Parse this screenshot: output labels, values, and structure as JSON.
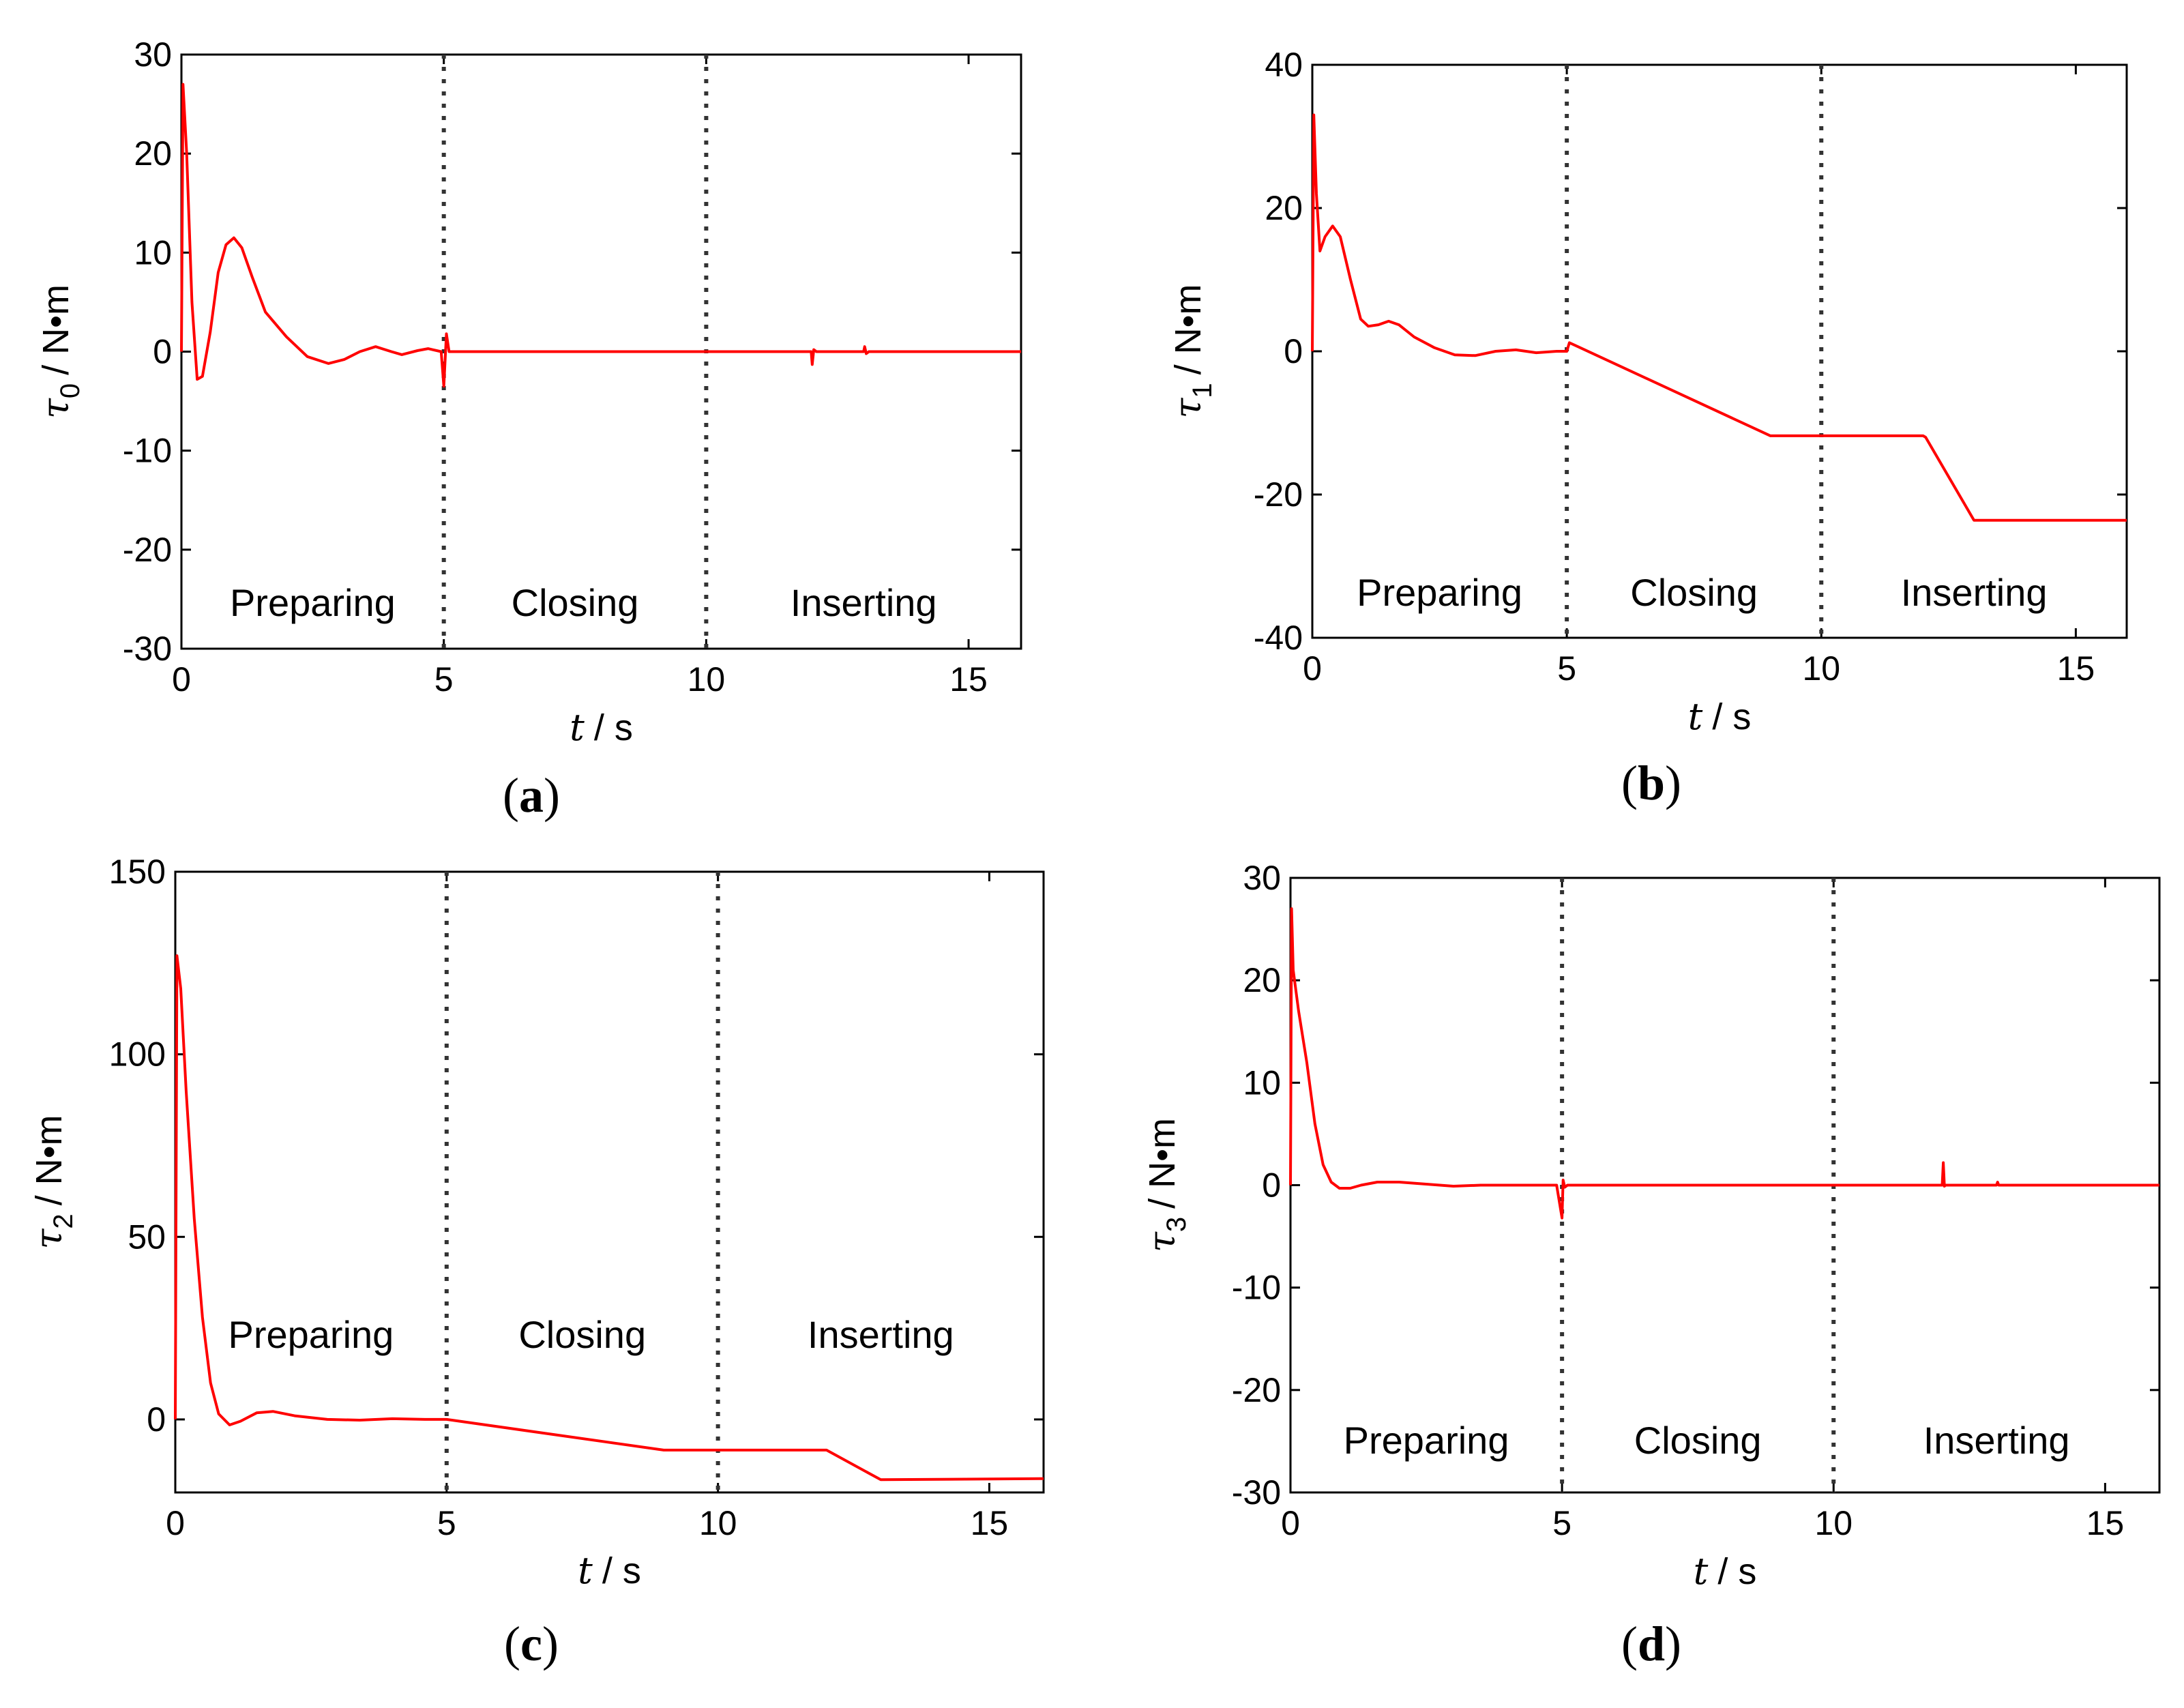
{
  "chart_data": [
    {
      "type": "line",
      "panel": "a",
      "caption_letter": "a",
      "ylabel": {
        "symbol": "τ",
        "subscript": "0",
        "unit": "/ N•m"
      },
      "xlabel": {
        "symbol": "t",
        "unit": "/ s"
      },
      "xlim": [
        0,
        16
      ],
      "ylim": [
        -30,
        30
      ],
      "xticks": [
        0,
        5,
        10,
        15
      ],
      "yticks": [
        -30,
        -20,
        -10,
        0,
        10,
        20,
        30
      ],
      "phase_boundaries": [
        5,
        10
      ],
      "phases": [
        "Preparing",
        "Closing",
        "Inserting"
      ],
      "series": [
        {
          "name": "tau0",
          "x": [
            0,
            0.03,
            0.1,
            0.2,
            0.3,
            0.4,
            0.55,
            0.7,
            0.85,
            1.0,
            1.15,
            1.35,
            1.6,
            2.0,
            2.4,
            2.8,
            3.1,
            3.4,
            3.7,
            4.0,
            4.2,
            4.5,
            4.7,
            4.95,
            5.0,
            5.05,
            5.1,
            6,
            8,
            10,
            12.0,
            12.02,
            12.05,
            12.1,
            13.0,
            13.02,
            13.05,
            13.1,
            16
          ],
          "y": [
            0,
            27,
            20,
            5,
            -2.8,
            -2.5,
            2,
            8,
            10.8,
            11.5,
            10.5,
            7.5,
            4,
            1.5,
            -0.5,
            -1.2,
            -0.8,
            0,
            0.5,
            0,
            -0.3,
            0.1,
            0.3,
            0,
            -3.5,
            1.8,
            0,
            0,
            0,
            0,
            0,
            -1.3,
            0.2,
            0,
            0,
            0.5,
            -0.2,
            0,
            0
          ]
        }
      ]
    },
    {
      "type": "line",
      "panel": "b",
      "caption_letter": "b",
      "ylabel": {
        "symbol": "τ",
        "subscript": "1",
        "unit": "/ N•m"
      },
      "xlabel": {
        "symbol": "t",
        "unit": "/ s"
      },
      "xlim": [
        0,
        16
      ],
      "ylim": [
        -40,
        40
      ],
      "xticks": [
        0,
        5,
        10,
        15
      ],
      "yticks": [
        -40,
        -20,
        0,
        20,
        40
      ],
      "phase_boundaries": [
        5,
        10
      ],
      "phases": [
        "Preparing",
        "Closing",
        "Inserting"
      ],
      "series": [
        {
          "name": "tau1",
          "x": [
            0,
            0.03,
            0.08,
            0.15,
            0.25,
            0.4,
            0.55,
            0.75,
            0.95,
            1.1,
            1.3,
            1.5,
            1.7,
            2.0,
            2.4,
            2.8,
            3.2,
            3.6,
            4.0,
            4.4,
            4.8,
            5.0,
            5.05,
            9.0,
            12.0,
            12.05,
            13.0,
            16
          ],
          "y": [
            0,
            33,
            22,
            14,
            16,
            17.5,
            16,
            10,
            4.5,
            3.5,
            3.7,
            4.2,
            3.7,
            2,
            0.5,
            -0.5,
            -0.6,
            0,
            0.2,
            -0.2,
            0,
            0,
            1.2,
            -11.8,
            -11.8,
            -12,
            -23.6,
            -23.6
          ]
        }
      ]
    },
    {
      "type": "line",
      "panel": "c",
      "caption_letter": "c",
      "ylabel": {
        "symbol": "τ",
        "subscript": "2",
        "unit": "/ N•m"
      },
      "xlabel": {
        "symbol": "t",
        "unit": "/ s"
      },
      "xlim": [
        0,
        16
      ],
      "ylim": [
        -20,
        150
      ],
      "xticks": [
        0,
        5,
        10,
        15
      ],
      "yticks": [
        0,
        50,
        100,
        150
      ],
      "phase_boundaries": [
        5,
        10
      ],
      "phases": [
        "Preparing",
        "Closing",
        "Inserting"
      ],
      "series": [
        {
          "name": "tau2",
          "x": [
            0,
            0.03,
            0.1,
            0.2,
            0.35,
            0.5,
            0.65,
            0.8,
            1.0,
            1.2,
            1.5,
            1.8,
            2.2,
            2.8,
            3.4,
            4.0,
            4.6,
            5.0,
            9.0,
            12.0,
            13.0,
            16
          ],
          "y": [
            0,
            127,
            118,
            90,
            55,
            28,
            10,
            1.5,
            -1.5,
            -0.5,
            1.8,
            2.2,
            1.0,
            0,
            -0.2,
            0.2,
            0,
            0,
            -8.4,
            -8.4,
            -16.5,
            -16.2
          ]
        }
      ]
    },
    {
      "type": "line",
      "panel": "d",
      "caption_letter": "d",
      "ylabel": {
        "symbol": "τ",
        "subscript": "3",
        "unit": "/ N•m"
      },
      "xlabel": {
        "symbol": "t",
        "unit": "/ s"
      },
      "xlim": [
        0,
        16
      ],
      "ylim": [
        -30,
        30
      ],
      "xticks": [
        0,
        5,
        10,
        15
      ],
      "yticks": [
        -30,
        -20,
        -10,
        0,
        10,
        20,
        30
      ],
      "phase_boundaries": [
        5,
        10
      ],
      "phases": [
        "Preparing",
        "Closing",
        "Inserting"
      ],
      "series": [
        {
          "name": "tau3",
          "x": [
            0,
            0.02,
            0.05,
            0.15,
            0.3,
            0.45,
            0.6,
            0.75,
            0.9,
            1.1,
            1.3,
            1.6,
            2.0,
            2.5,
            3.0,
            3.5,
            4.0,
            4.9,
            5.0,
            5.02,
            5.05,
            5.1,
            12.0,
            12.02,
            12.04,
            12.06,
            13.0,
            13.02,
            13.04,
            16
          ],
          "y": [
            0,
            27,
            21,
            17,
            12,
            6,
            2,
            0.3,
            -0.3,
            -0.3,
            0,
            0.3,
            0.3,
            0.1,
            -0.1,
            0,
            0,
            0,
            -3.2,
            0.5,
            -0.2,
            0,
            0,
            2.2,
            -0.1,
            0,
            0,
            0.3,
            0,
            0
          ]
        }
      ]
    }
  ],
  "style": {
    "line_color": "#ff0000",
    "axis_color": "#000000",
    "divider_color": "#333333",
    "background": "#ffffff"
  }
}
